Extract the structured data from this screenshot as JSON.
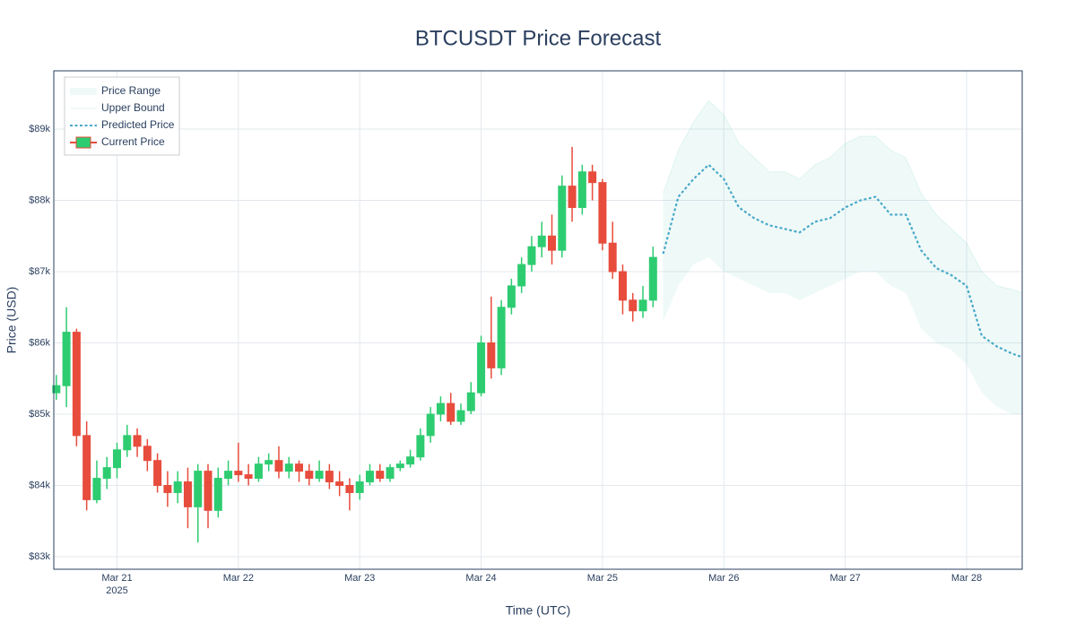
{
  "chart_data": {
    "type": "candlestick",
    "title": "BTCUSDT Price Forecast",
    "x_label": "Time (UTC)",
    "y_label": "Price (USD)",
    "xlim": [
      "2025-03-20 11:30",
      "2025-03-28 11:00"
    ],
    "xticks": [
      {
        "value": "2025-03-21 00:00",
        "label": "Mar 21"
      },
      {
        "value": "2025-03-22 00:00",
        "label": "Mar 22"
      },
      {
        "value": "2025-03-23 00:00",
        "label": "Mar 23"
      },
      {
        "value": "2025-03-24 00:00",
        "label": "Mar 24"
      },
      {
        "value": "2025-03-25 00:00",
        "label": "Mar 25"
      },
      {
        "value": "2025-03-26 00:00",
        "label": "Mar 26"
      },
      {
        "value": "2025-03-27 00:00",
        "label": "Mar 27"
      },
      {
        "value": "2025-03-28 00:00",
        "label": "Mar 28"
      }
    ],
    "xtick_year": "2025",
    "ylim": [
      82824,
      89818
    ],
    "yticks": [
      {
        "value": 83000,
        "label": "$83k"
      },
      {
        "value": 84000,
        "label": "$84k"
      },
      {
        "value": 85000,
        "label": "$85k"
      },
      {
        "value": 86000,
        "label": "$86k"
      },
      {
        "value": 87000,
        "label": "$87k"
      },
      {
        "value": 88000,
        "label": "$88k"
      },
      {
        "value": 89000,
        "label": "$89k"
      }
    ],
    "grid": true,
    "legend": "top-left",
    "series": [
      {
        "name": "Price Range",
        "kind": "band",
        "fill_to": 1,
        "color": "rgba(46,190,160,0.08)",
        "x": [
          "2025-03-25 12:00",
          "2025-03-25 15:00",
          "2025-03-25 18:00",
          "2025-03-25 21:00",
          "2025-03-26 00:00",
          "2025-03-26 03:00",
          "2025-03-26 06:00",
          "2025-03-26 09:00",
          "2025-03-26 12:00",
          "2025-03-26 15:00",
          "2025-03-26 18:00",
          "2025-03-26 21:00",
          "2025-03-27 00:00",
          "2025-03-27 03:00",
          "2025-03-27 06:00",
          "2025-03-27 09:00",
          "2025-03-27 12:00",
          "2025-03-27 15:00",
          "2025-03-27 18:00",
          "2025-03-27 21:00",
          "2025-03-28 00:00",
          "2025-03-28 03:00",
          "2025-03-28 06:00",
          "2025-03-28 09:00",
          "2025-03-28 11:00"
        ],
        "values": [
          86300,
          86800,
          87100,
          87200,
          87000,
          86900,
          86800,
          86700,
          86700,
          86600,
          86700,
          86800,
          86900,
          87000,
          87000,
          86800,
          86700,
          86200,
          86000,
          85900,
          85700,
          85300,
          85100,
          85000,
          85000
        ]
      },
      {
        "name": "Upper Bound",
        "kind": "line",
        "color": "rgba(46,190,160,0.12)",
        "x": [
          "2025-03-25 12:00",
          "2025-03-25 15:00",
          "2025-03-25 18:00",
          "2025-03-25 21:00",
          "2025-03-26 00:00",
          "2025-03-26 03:00",
          "2025-03-26 06:00",
          "2025-03-26 09:00",
          "2025-03-26 12:00",
          "2025-03-26 15:00",
          "2025-03-26 18:00",
          "2025-03-26 21:00",
          "2025-03-27 00:00",
          "2025-03-27 03:00",
          "2025-03-27 06:00",
          "2025-03-27 09:00",
          "2025-03-27 12:00",
          "2025-03-27 15:00",
          "2025-03-27 18:00",
          "2025-03-27 21:00",
          "2025-03-28 00:00",
          "2025-03-28 03:00",
          "2025-03-28 06:00",
          "2025-03-28 09:00",
          "2025-03-28 11:00"
        ],
        "values": [
          88100,
          88700,
          89100,
          89400,
          89200,
          88800,
          88600,
          88400,
          88400,
          88300,
          88500,
          88600,
          88800,
          88900,
          88900,
          88700,
          88600,
          88100,
          87800,
          87600,
          87400,
          87000,
          86800,
          86750,
          86700
        ]
      },
      {
        "name": "Predicted Price",
        "kind": "line",
        "dash": true,
        "color": "#4aa8c9",
        "x": [
          "2025-03-25 12:00",
          "2025-03-25 15:00",
          "2025-03-25 18:00",
          "2025-03-25 21:00",
          "2025-03-26 00:00",
          "2025-03-26 03:00",
          "2025-03-26 06:00",
          "2025-03-26 09:00",
          "2025-03-26 12:00",
          "2025-03-26 15:00",
          "2025-03-26 18:00",
          "2025-03-26 21:00",
          "2025-03-27 00:00",
          "2025-03-27 03:00",
          "2025-03-27 06:00",
          "2025-03-27 09:00",
          "2025-03-27 12:00",
          "2025-03-27 15:00",
          "2025-03-27 18:00",
          "2025-03-27 21:00",
          "2025-03-28 00:00",
          "2025-03-28 03:00",
          "2025-03-28 06:00",
          "2025-03-28 09:00",
          "2025-03-28 11:00"
        ],
        "values": [
          87250,
          88050,
          88300,
          88500,
          88300,
          87900,
          87750,
          87650,
          87600,
          87550,
          87700,
          87750,
          87900,
          88000,
          88050,
          87800,
          87800,
          87300,
          87050,
          86950,
          86800,
          86100,
          85950,
          85850,
          85800
        ]
      },
      {
        "name": "Current Price",
        "kind": "candles",
        "up_color": "#2ecc71",
        "down_color": "#e74c3c",
        "x": [
          "2025-03-20 12:00",
          "2025-03-20 14:00",
          "2025-03-20 16:00",
          "2025-03-20 18:00",
          "2025-03-20 20:00",
          "2025-03-20 22:00",
          "2025-03-21 00:00",
          "2025-03-21 02:00",
          "2025-03-21 04:00",
          "2025-03-21 06:00",
          "2025-03-21 08:00",
          "2025-03-21 10:00",
          "2025-03-21 12:00",
          "2025-03-21 14:00",
          "2025-03-21 16:00",
          "2025-03-21 18:00",
          "2025-03-21 20:00",
          "2025-03-21 22:00",
          "2025-03-22 00:00",
          "2025-03-22 02:00",
          "2025-03-22 04:00",
          "2025-03-22 06:00",
          "2025-03-22 08:00",
          "2025-03-22 10:00",
          "2025-03-22 12:00",
          "2025-03-22 14:00",
          "2025-03-22 16:00",
          "2025-03-22 18:00",
          "2025-03-22 20:00",
          "2025-03-22 22:00",
          "2025-03-23 00:00",
          "2025-03-23 02:00",
          "2025-03-23 04:00",
          "2025-03-23 06:00",
          "2025-03-23 08:00",
          "2025-03-23 10:00",
          "2025-03-23 12:00",
          "2025-03-23 14:00",
          "2025-03-23 16:00",
          "2025-03-23 18:00",
          "2025-03-23 20:00",
          "2025-03-23 22:00",
          "2025-03-24 00:00",
          "2025-03-24 02:00",
          "2025-03-24 04:00",
          "2025-03-24 06:00",
          "2025-03-24 08:00",
          "2025-03-24 10:00",
          "2025-03-24 12:00",
          "2025-03-24 14:00",
          "2025-03-24 16:00",
          "2025-03-24 18:00",
          "2025-03-24 20:00",
          "2025-03-24 22:00",
          "2025-03-25 00:00",
          "2025-03-25 02:00",
          "2025-03-25 04:00",
          "2025-03-25 06:00",
          "2025-03-25 08:00",
          "2025-03-25 10:00"
        ],
        "open": [
          85300,
          85400,
          86150,
          84700,
          83800,
          84100,
          84250,
          84500,
          84700,
          84550,
          84350,
          84000,
          83900,
          84050,
          83700,
          84200,
          83650,
          84100,
          84200,
          84150,
          84100,
          84300,
          84350,
          84200,
          84300,
          84200,
          84100,
          84200,
          84050,
          84000,
          83900,
          84050,
          84200,
          84100,
          84250,
          84300,
          84400,
          84700,
          85000,
          85150,
          84900,
          85050,
          85300,
          86000,
          85650,
          86500,
          86800,
          87100,
          87350,
          87500,
          87300,
          88200,
          87900,
          88400,
          88250,
          87400,
          87000,
          86600,
          86450,
          86600
        ],
        "high": [
          85550,
          86500,
          86200,
          84900,
          84350,
          84400,
          84600,
          84850,
          84800,
          84650,
          84450,
          84200,
          84200,
          84250,
          84300,
          84300,
          84250,
          84350,
          84600,
          84300,
          84400,
          84450,
          84550,
          84400,
          84350,
          84300,
          84350,
          84300,
          84200,
          84100,
          84150,
          84300,
          84300,
          84300,
          84350,
          84500,
          84800,
          85100,
          85250,
          85300,
          85150,
          85450,
          86100,
          86650,
          86600,
          86900,
          87200,
          87500,
          87700,
          87800,
          88350,
          88750,
          88500,
          88500,
          88300,
          87700,
          87100,
          86700,
          86800,
          87350
        ],
        "low": [
          85200,
          85100,
          84550,
          83650,
          83750,
          83950,
          84100,
          84400,
          84400,
          84200,
          83900,
          83700,
          83750,
          83400,
          83200,
          83400,
          83550,
          84000,
          84050,
          84000,
          84050,
          84200,
          84100,
          84100,
          84050,
          84000,
          84050,
          83950,
          83850,
          83650,
          83800,
          84000,
          84050,
          84050,
          84200,
          84250,
          84350,
          84600,
          84900,
          84850,
          84850,
          85000,
          85250,
          85500,
          85550,
          86400,
          86700,
          87000,
          87200,
          87100,
          87200,
          87700,
          87800,
          88000,
          87300,
          86900,
          86400,
          86300,
          86350,
          86500
        ],
        "close": [
          85400,
          86150,
          84700,
          83800,
          84100,
          84250,
          84500,
          84700,
          84550,
          84350,
          84000,
          83900,
          84050,
          83700,
          84200,
          83650,
          84100,
          84200,
          84150,
          84100,
          84300,
          84350,
          84200,
          84300,
          84200,
          84100,
          84200,
          84050,
          84000,
          83900,
          84050,
          84200,
          84100,
          84250,
          84300,
          84400,
          84700,
          85000,
          85150,
          84900,
          85050,
          85300,
          86000,
          85650,
          86500,
          86800,
          87100,
          87350,
          87500,
          87300,
          88200,
          87900,
          88400,
          88250,
          87400,
          87000,
          86600,
          86450,
          86600,
          87200
        ]
      }
    ]
  }
}
